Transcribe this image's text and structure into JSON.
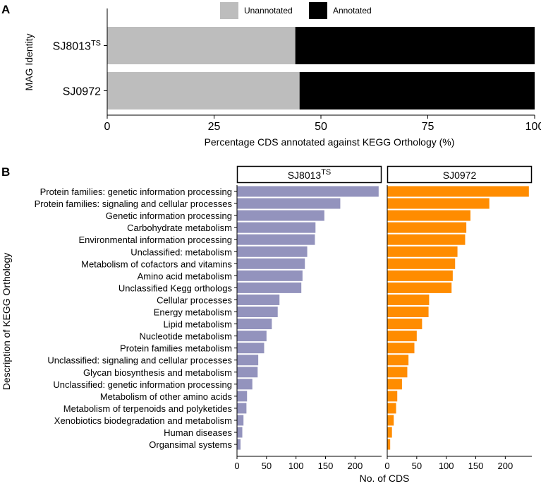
{
  "chart_data": [
    {
      "panel": "A",
      "type": "bar",
      "orientation": "horizontal",
      "stacked": true,
      "categories": [
        "SJ8013TS",
        "SJ0972"
      ],
      "category_display": [
        {
          "base": "SJ8013",
          "sup": "TS"
        },
        {
          "base": "SJ0972",
          "sup": ""
        }
      ],
      "series": [
        {
          "name": "Unannotated",
          "color": "#bdbdbd",
          "values": [
            44,
            45
          ]
        },
        {
          "name": "Annotated",
          "color": "#000000",
          "values": [
            56,
            55
          ]
        }
      ],
      "xlabel": "Percentage CDS annotated against KEGG Orthology (%)",
      "ylabel": "MAG Identity",
      "xlim": [
        0,
        100
      ],
      "xticks": [
        0,
        25,
        50,
        75,
        100
      ],
      "legend": {
        "position": "top",
        "items": [
          "Unannotated",
          "Annotated"
        ]
      }
    },
    {
      "panel": "B",
      "type": "bar",
      "orientation": "horizontal",
      "facets": [
        {
          "label_base": "SJ8013",
          "label_sup": "TS",
          "color": "#9393bd",
          "values": [
            240,
            175,
            148,
            133,
            132,
            119,
            115,
            111,
            109,
            72,
            69,
            59,
            50,
            46,
            36,
            35,
            26,
            17,
            16,
            11,
            9,
            6
          ]
        },
        {
          "label_base": "SJ0972",
          "label_sup": "",
          "color": "#ff8c00",
          "values": [
            240,
            173,
            141,
            134,
            132,
            119,
            115,
            111,
            109,
            71,
            70,
            59,
            50,
            46,
            36,
            34,
            25,
            17,
            15,
            11,
            8,
            5
          ]
        }
      ],
      "categories": [
        "Protein families: genetic information processing",
        "Protein families: signaling and cellular processes",
        "Genetic information processing",
        "Carbohydrate metabolism",
        "Environmental information processing",
        "Unclassified: metabolism",
        "Metabolism of cofactors and vitamins",
        "Amino acid metabolism",
        "Unclassified Kegg orthologs",
        "Cellular processes",
        "Energy metabolism",
        "Lipid metabolism",
        "Nucleotide metabolism",
        "Protein families metabolism",
        "Unclassified: signaling and cellular processes",
        "Glycan biosynthesis and metabolism",
        "Unclassified: genetic information processing",
        "Metabolism of other amino acids",
        "Metabolism of terpenoids and polyketides",
        "Xenobiotics biodegradation and metabolism",
        "Human diseases",
        "Organsimal systems"
      ],
      "xlabel": "No. of CDS",
      "ylabel": "Description of KEGG Orthology",
      "xlim": [
        0,
        245
      ],
      "xticks": [
        0,
        50,
        100,
        150,
        200
      ]
    }
  ],
  "panel_labels": {
    "a": "A",
    "b": "B"
  }
}
